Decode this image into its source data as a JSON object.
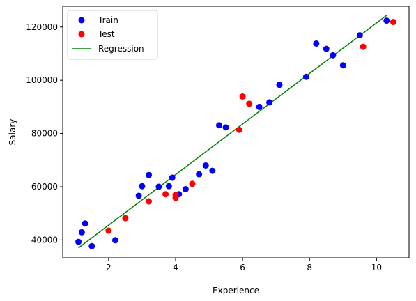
{
  "chart_data": {
    "type": "scatter",
    "title": "",
    "xlabel": "Experience",
    "ylabel": "Salary",
    "xlim": [
      0.63,
      10.97
    ],
    "ylim": [
      33300,
      127800
    ],
    "xticks": [
      2,
      4,
      6,
      8,
      10
    ],
    "yticks": [
      40000,
      60000,
      80000,
      100000,
      120000
    ],
    "xtick_labels": [
      "2",
      "4",
      "6",
      "8",
      "10"
    ],
    "ytick_labels": [
      "40000",
      "60000",
      "80000",
      "100000",
      "120000"
    ],
    "grid": false,
    "legend": {
      "position": "upper-left",
      "entries": [
        "Train",
        "Test",
        "Regression"
      ]
    },
    "colors": {
      "train": "#0000ff",
      "test": "#ff0000",
      "regression": "#008000"
    },
    "series": [
      {
        "name": "Train",
        "kind": "scatter",
        "points": [
          [
            1.1,
            39300
          ],
          [
            1.2,
            42900
          ],
          [
            1.3,
            46200
          ],
          [
            1.5,
            37700
          ],
          [
            2.2,
            39900
          ],
          [
            2.9,
            56600
          ],
          [
            3.0,
            60200
          ],
          [
            3.2,
            64400
          ],
          [
            3.5,
            60000
          ],
          [
            3.8,
            60200
          ],
          [
            3.9,
            63400
          ],
          [
            4.1,
            57200
          ],
          [
            4.3,
            59100
          ],
          [
            4.7,
            64700
          ],
          [
            4.9,
            68000
          ],
          [
            5.1,
            66000
          ],
          [
            5.3,
            83100
          ],
          [
            5.5,
            82300
          ],
          [
            6.5,
            90000
          ],
          [
            6.8,
            91700
          ],
          [
            7.1,
            98300
          ],
          [
            7.9,
            101300
          ],
          [
            8.2,
            113800
          ],
          [
            8.5,
            111800
          ],
          [
            8.7,
            109400
          ],
          [
            9.0,
            105600
          ],
          [
            9.5,
            116900
          ],
          [
            10.3,
            122400
          ]
        ]
      },
      {
        "name": "Test",
        "kind": "scatter",
        "points": [
          [
            2.0,
            43500
          ],
          [
            2.5,
            48200
          ],
          [
            3.2,
            54500
          ],
          [
            3.7,
            57200
          ],
          [
            4.0,
            56900
          ],
          [
            4.0,
            55800
          ],
          [
            4.5,
            61100
          ],
          [
            5.9,
            81400
          ],
          [
            6.0,
            93900
          ],
          [
            6.2,
            91200
          ],
          [
            9.6,
            112600
          ],
          [
            10.5,
            121900
          ]
        ]
      },
      {
        "name": "Regression",
        "kind": "line",
        "points": [
          [
            1.1,
            37000
          ],
          [
            10.3,
            124400
          ]
        ]
      }
    ]
  }
}
